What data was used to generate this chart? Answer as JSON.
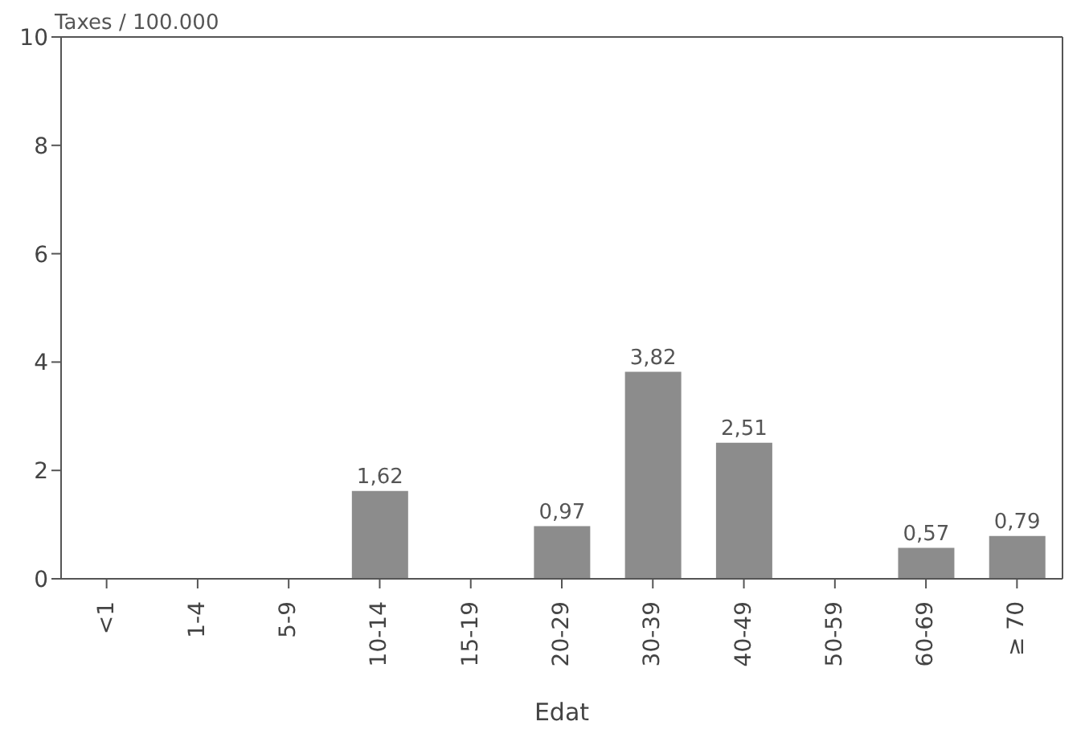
{
  "chart_data": {
    "type": "bar",
    "ylabel": "Taxes / 100.000",
    "xlabel": "Edat",
    "categories": [
      "<1",
      "1-4",
      "5-9",
      "10-14",
      "15-19",
      "20-29",
      "30-39",
      "40-49",
      "50-59",
      "60-69",
      "≥ 70"
    ],
    "values": [
      null,
      null,
      null,
      1.62,
      null,
      0.97,
      3.82,
      2.51,
      null,
      0.57,
      0.79
    ],
    "value_labels": [
      null,
      null,
      null,
      "1,62",
      null,
      "0,97",
      "3,82",
      "2,51",
      null,
      "0,57",
      "0,79"
    ],
    "color": "#8c8c8c",
    "ylim": [
      0,
      10
    ],
    "yticks": [
      0,
      2,
      4,
      6,
      8,
      10
    ],
    "grid": false,
    "legend": false
  }
}
